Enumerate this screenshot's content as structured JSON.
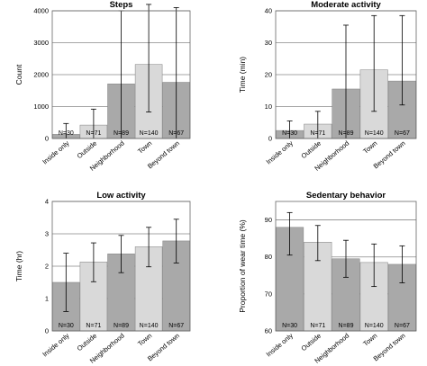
{
  "chart_data": [
    {
      "type": "bar",
      "title": "Steps",
      "ylabel": "Count",
      "ylim": [
        0,
        4000
      ],
      "yticks": [
        0,
        1000,
        2000,
        3000,
        4000
      ],
      "categories": [
        "Inside only",
        "Outside",
        "Neighborhood",
        "Town",
        "Beyond town"
      ],
      "values": [
        130,
        420,
        1710,
        2320,
        1760
      ],
      "error_low": [
        0,
        0,
        0,
        830,
        0
      ],
      "error_high": [
        470,
        920,
        4000,
        4200,
        4100
      ],
      "bar_labels": [
        "N=30",
        "N=71",
        "N=89",
        "N=140",
        "N=67"
      ],
      "bar_colors": [
        "#a9a9a9",
        "#d9d9d9",
        "#a9a9a9",
        "#d9d9d9",
        "#a9a9a9"
      ]
    },
    {
      "type": "bar",
      "title": "Moderate activity",
      "ylabel": "Time (min)",
      "ylim": [
        0,
        40
      ],
      "yticks": [
        0,
        10,
        20,
        30,
        40
      ],
      "categories": [
        "Inside only",
        "Outside",
        "Neighborhood",
        "Town",
        "Beyond town"
      ],
      "values": [
        2.5,
        4.5,
        15.5,
        21.5,
        18
      ],
      "error_low": [
        0,
        0,
        0,
        8.5,
        10.5
      ],
      "error_high": [
        5.5,
        8.5,
        35.5,
        38.5,
        38.5
      ],
      "bar_labels": [
        "N=30",
        "N=71",
        "N=89",
        "N=140",
        "N=67"
      ],
      "bar_colors": [
        "#a9a9a9",
        "#d9d9d9",
        "#a9a9a9",
        "#d9d9d9",
        "#a9a9a9"
      ]
    },
    {
      "type": "bar",
      "title": "Low activity",
      "ylabel": "Time (hr)",
      "ylim": [
        0,
        4
      ],
      "yticks": [
        0,
        1,
        2,
        3,
        4
      ],
      "categories": [
        "Inside only",
        "Outside",
        "Neighborhood",
        "Town",
        "Beyond town"
      ],
      "values": [
        1.5,
        2.13,
        2.38,
        2.6,
        2.78
      ],
      "error_low": [
        0.6,
        1.52,
        1.8,
        1.98,
        2.1
      ],
      "error_high": [
        2.4,
        2.72,
        2.95,
        3.2,
        3.45
      ],
      "bar_labels": [
        "N=30",
        "N=71",
        "N=89",
        "N=140",
        "N=67"
      ],
      "bar_colors": [
        "#a9a9a9",
        "#d9d9d9",
        "#a9a9a9",
        "#d9d9d9",
        "#a9a9a9"
      ]
    },
    {
      "type": "bar",
      "title": "Sedentary behavior",
      "ylabel": "Proportion of wear time (%)",
      "ylim": [
        60,
        95
      ],
      "yticks": [
        60,
        70,
        80,
        90
      ],
      "categories": [
        "Inside only",
        "Outside",
        "Neighborhood",
        "Town",
        "Beyond town"
      ],
      "values": [
        88,
        84,
        79.5,
        78.5,
        78
      ],
      "error_low": [
        80.5,
        79,
        74.5,
        72,
        73
      ],
      "error_high": [
        92,
        88.5,
        84.5,
        83.5,
        83
      ],
      "bar_labels": [
        "N=30",
        "N=71",
        "N=89",
        "N=140",
        "N=67"
      ],
      "bar_colors": [
        "#a9a9a9",
        "#d9d9d9",
        "#a9a9a9",
        "#d9d9d9",
        "#a9a9a9"
      ]
    }
  ]
}
